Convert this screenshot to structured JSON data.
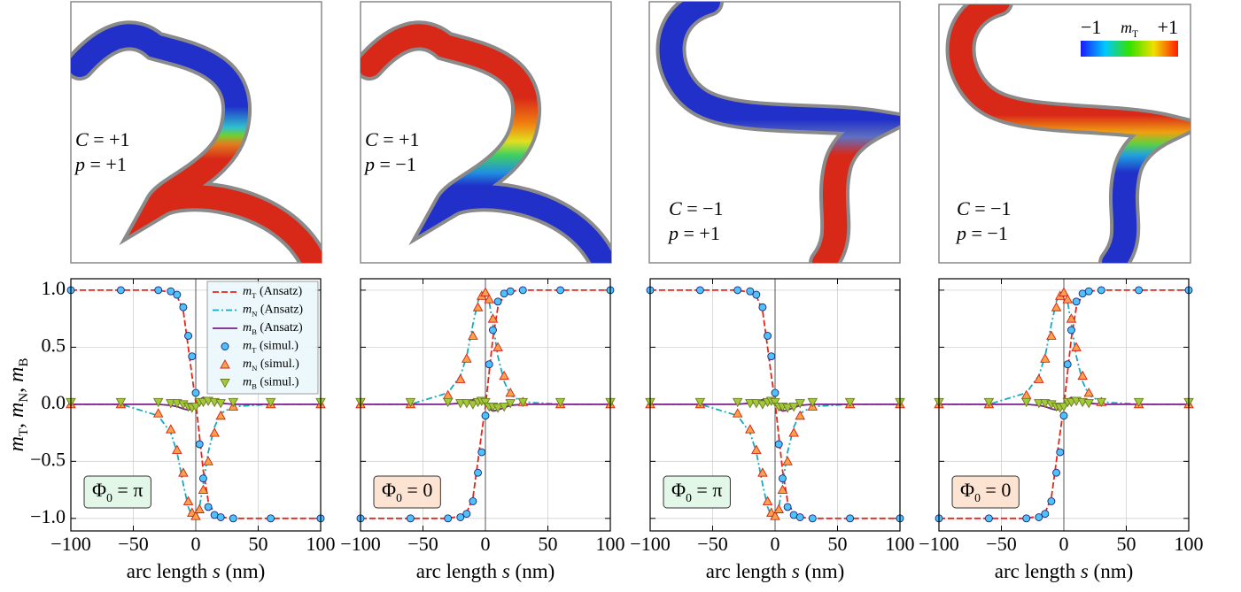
{
  "images": [
    {
      "annotations": [
        "C = +1",
        "p = +1"
      ]
    },
    {
      "annotations": [
        "C = +1",
        "p = −1"
      ]
    },
    {
      "annotations": [
        "C = −1",
        "p = +1"
      ]
    },
    {
      "annotations": [
        "C = −1",
        "p = −1"
      ],
      "colorbar": {
        "label": "mT",
        "ticks": [
          {
            "value": -1,
            "label": "−1"
          },
          {
            "value": 1,
            "label": "+1"
          }
        ],
        "colors": [
          "#1a1aff",
          "#00c8ff",
          "#33e000",
          "#f0e000",
          "#ff1a00"
        ]
      }
    }
  ],
  "chart_data": [
    {
      "type": "line",
      "ylabel": "mT, mN, mB",
      "xlabel": "arc length s (nm)",
      "xlim": [
        -100,
        100
      ],
      "ylim": [
        -1.11,
        1.1
      ],
      "xticks": [
        {
          "value": -100,
          "label": "−100"
        },
        {
          "value": -50,
          "label": "−50"
        },
        0,
        50,
        100
      ],
      "yticks": [
        {
          "value": -1,
          "label": "−1.0"
        },
        {
          "value": -0.5,
          "label": "−0.5"
        },
        {
          "value": 0,
          "label": "0.0"
        },
        {
          "value": 0.5,
          "label": "0.5"
        },
        {
          "value": 1,
          "label": "1.0"
        }
      ],
      "grid": true,
      "vline": 0,
      "legend": "upper right",
      "annotation": {
        "text": "Φ0 = π",
        "facecolor": "#e2f7e8"
      },
      "x": [
        -100,
        -60,
        -30,
        -20,
        -15,
        -10,
        -6,
        -3,
        0,
        3,
        6,
        10,
        15,
        20,
        30,
        60,
        100
      ],
      "series": [
        {
          "name": "mT (Ansatz)",
          "kind": "line",
          "style": "dashed",
          "color": "#e3261c",
          "values": [
            1,
            1,
            1,
            0.98,
            0.95,
            0.82,
            0.5,
            0.25,
            0.02,
            -0.28,
            -0.58,
            -0.85,
            -0.96,
            -0.99,
            -1,
            -1,
            -1
          ]
        },
        {
          "name": "mN (Ansatz)",
          "kind": "line",
          "style": "dashdot",
          "color": "#17a9bd",
          "values": [
            0,
            0,
            -0.1,
            -0.25,
            -0.42,
            -0.7,
            -0.9,
            -0.98,
            -0.99,
            -0.9,
            -0.7,
            -0.42,
            -0.2,
            -0.08,
            -0.02,
            0,
            0
          ]
        },
        {
          "name": "mB (Ansatz)",
          "kind": "line",
          "style": "solid",
          "color": "#7a1f8a",
          "values": [
            0,
            0,
            0,
            -0.01,
            -0.02,
            -0.04,
            -0.05,
            -0.04,
            0,
            0.04,
            0.06,
            0.05,
            0.03,
            0.01,
            0,
            0,
            0
          ]
        },
        {
          "name": "mT (simul.)",
          "kind": "scatter",
          "marker": "circle",
          "color": "#4fc3f7",
          "edgecolor": "#1a237e",
          "values": [
            1,
            1,
            1,
            0.99,
            0.96,
            0.85,
            0.6,
            0.42,
            0.1,
            -0.35,
            -0.65,
            -0.9,
            -0.97,
            -0.99,
            -1,
            -1,
            -1
          ]
        },
        {
          "name": "mN (simul.)",
          "kind": "scatter",
          "marker": "triangle-up",
          "color": "#f8a24e",
          "edgecolor": "#d62010",
          "values": [
            0,
            0,
            -0.08,
            -0.22,
            -0.4,
            -0.6,
            -0.85,
            -0.95,
            -0.98,
            -0.92,
            -0.75,
            -0.5,
            -0.25,
            -0.1,
            -0.02,
            0,
            0
          ]
        },
        {
          "name": "mB (simul.)",
          "kind": "scatter",
          "marker": "triangle-down",
          "color": "#a3c93a",
          "edgecolor": "#6b7a1e",
          "values": [
            0.02,
            0.02,
            0.02,
            0.01,
            0.01,
            0,
            -0.02,
            -0.03,
            -0.02,
            0.02,
            0.02,
            0.03,
            0.02,
            0.01,
            0.02,
            0.02,
            0.02
          ]
        }
      ]
    },
    {
      "type": "line",
      "xlabel": "arc length s (nm)",
      "xlim": [
        -100,
        100
      ],
      "ylim": [
        -1.11,
        1.1
      ],
      "xticks": [
        {
          "value": -100,
          "label": "−100"
        },
        {
          "value": -50,
          "label": "−50"
        },
        0,
        50,
        100
      ],
      "yticks": [
        -1,
        -0.5,
        0,
        0.5,
        1
      ],
      "show_ytick_labels": false,
      "grid": true,
      "vline": 0,
      "annotation": {
        "text": "Φ0 = 0",
        "facecolor": "#fde3d2"
      },
      "x": [
        -100,
        -60,
        -30,
        -20,
        -15,
        -10,
        -6,
        -3,
        0,
        3,
        6,
        10,
        15,
        20,
        30,
        60,
        100
      ],
      "series": [
        {
          "kind": "line",
          "style": "dashed",
          "color": "#e3261c",
          "values": [
            -1,
            -1,
            -1,
            -0.98,
            -0.95,
            -0.82,
            -0.5,
            -0.25,
            -0.02,
            0.28,
            0.58,
            0.85,
            0.96,
            0.99,
            1,
            1,
            1
          ]
        },
        {
          "kind": "line",
          "style": "dashdot",
          "color": "#17a9bd",
          "values": [
            0,
            0,
            0.1,
            0.25,
            0.42,
            0.7,
            0.9,
            0.98,
            0.99,
            0.9,
            0.7,
            0.42,
            0.2,
            0.08,
            0.02,
            0,
            0
          ]
        },
        {
          "kind": "line",
          "style": "solid",
          "color": "#7a1f8a",
          "values": [
            0,
            0,
            0,
            0.01,
            0.02,
            0.04,
            0.05,
            0.04,
            0,
            -0.04,
            -0.06,
            -0.05,
            -0.03,
            -0.01,
            0,
            0,
            0
          ]
        },
        {
          "kind": "scatter",
          "marker": "circle",
          "color": "#4fc3f7",
          "edgecolor": "#1a237e",
          "values": [
            -1,
            -1,
            -1,
            -0.99,
            -0.96,
            -0.85,
            -0.6,
            -0.42,
            -0.1,
            0.35,
            0.65,
            0.9,
            0.97,
            0.99,
            1,
            1,
            1
          ]
        },
        {
          "kind": "scatter",
          "marker": "triangle-up",
          "color": "#f8a24e",
          "edgecolor": "#d62010",
          "values": [
            0,
            0,
            0.08,
            0.22,
            0.4,
            0.6,
            0.85,
            0.95,
            0.98,
            0.92,
            0.75,
            0.5,
            0.25,
            0.1,
            0.02,
            0,
            0
          ]
        },
        {
          "kind": "scatter",
          "marker": "triangle-down",
          "color": "#a3c93a",
          "edgecolor": "#6b7a1e",
          "values": [
            0.02,
            0.02,
            0.02,
            0.01,
            0.01,
            0,
            0.02,
            0.03,
            0.02,
            -0.02,
            -0.02,
            -0.03,
            -0.02,
            0.01,
            0.02,
            0.02,
            0.02
          ]
        }
      ]
    },
    {
      "type": "line",
      "xlabel": "arc length s (nm)",
      "xlim": [
        -100,
        100
      ],
      "ylim": [
        -1.11,
        1.1
      ],
      "xticks": [
        {
          "value": -100,
          "label": "−100"
        },
        {
          "value": -50,
          "label": "−50"
        },
        0,
        50,
        100
      ],
      "yticks": [
        -1,
        -0.5,
        0,
        0.5,
        1
      ],
      "show_ytick_labels": false,
      "grid": true,
      "vline": 0,
      "annotation": {
        "text": "Φ0 = π",
        "facecolor": "#e2f7e8"
      },
      "x": [
        -100,
        -60,
        -30,
        -20,
        -15,
        -10,
        -6,
        -3,
        0,
        3,
        6,
        10,
        15,
        20,
        30,
        60,
        100
      ],
      "series": [
        {
          "kind": "line",
          "style": "dashed",
          "color": "#e3261c",
          "values": [
            1,
            1,
            1,
            0.98,
            0.95,
            0.82,
            0.5,
            0.25,
            0.02,
            -0.28,
            -0.58,
            -0.85,
            -0.96,
            -0.99,
            -1,
            -1,
            -1
          ]
        },
        {
          "kind": "line",
          "style": "dashdot",
          "color": "#17a9bd",
          "values": [
            0,
            0,
            -0.1,
            -0.25,
            -0.42,
            -0.7,
            -0.9,
            -0.98,
            -0.99,
            -0.9,
            -0.7,
            -0.42,
            -0.2,
            -0.08,
            -0.02,
            0,
            0
          ]
        },
        {
          "kind": "line",
          "style": "solid",
          "color": "#7a1f8a",
          "values": [
            0,
            0,
            0,
            0.01,
            0.02,
            0.04,
            0.05,
            0.04,
            0,
            -0.04,
            -0.06,
            -0.05,
            -0.03,
            -0.01,
            0,
            0,
            0
          ]
        },
        {
          "kind": "scatter",
          "marker": "circle",
          "color": "#4fc3f7",
          "edgecolor": "#1a237e",
          "values": [
            1,
            1,
            1,
            0.99,
            0.96,
            0.85,
            0.6,
            0.42,
            0.1,
            -0.35,
            -0.65,
            -0.9,
            -0.97,
            -0.99,
            -1,
            -1,
            -1
          ]
        },
        {
          "kind": "scatter",
          "marker": "triangle-up",
          "color": "#f8a24e",
          "edgecolor": "#d62010",
          "values": [
            0,
            0,
            -0.08,
            -0.22,
            -0.4,
            -0.6,
            -0.85,
            -0.95,
            -0.98,
            -0.92,
            -0.75,
            -0.5,
            -0.25,
            -0.1,
            -0.02,
            0,
            0
          ]
        },
        {
          "kind": "scatter",
          "marker": "triangle-down",
          "color": "#a3c93a",
          "edgecolor": "#6b7a1e",
          "values": [
            0.02,
            0.02,
            0.02,
            0.01,
            0.01,
            0,
            0.02,
            0.03,
            0.02,
            -0.02,
            -0.02,
            -0.03,
            -0.02,
            0.01,
            0.02,
            0.02,
            0.02
          ]
        }
      ]
    },
    {
      "type": "line",
      "xlabel": "arc length s (nm)",
      "xlim": [
        -100,
        100
      ],
      "ylim": [
        -1.11,
        1.1
      ],
      "xticks": [
        {
          "value": -100,
          "label": "−100"
        },
        {
          "value": -50,
          "label": "−50"
        },
        0,
        50,
        100
      ],
      "yticks": [
        -1,
        -0.5,
        0,
        0.5,
        1
      ],
      "show_ytick_labels": false,
      "grid": true,
      "vline": 0,
      "annotation": {
        "text": "Φ0 = 0",
        "facecolor": "#fde3d2"
      },
      "x": [
        -100,
        -60,
        -30,
        -20,
        -15,
        -10,
        -6,
        -3,
        0,
        3,
        6,
        10,
        15,
        20,
        30,
        60,
        100
      ],
      "series": [
        {
          "kind": "line",
          "style": "dashed",
          "color": "#e3261c",
          "values": [
            -1,
            -1,
            -1,
            -0.98,
            -0.95,
            -0.82,
            -0.5,
            -0.25,
            -0.02,
            0.28,
            0.58,
            0.85,
            0.96,
            0.99,
            1,
            1,
            1
          ]
        },
        {
          "kind": "line",
          "style": "dashdot",
          "color": "#17a9bd",
          "values": [
            0,
            0,
            0.1,
            0.25,
            0.42,
            0.7,
            0.9,
            0.98,
            0.99,
            0.9,
            0.7,
            0.42,
            0.2,
            0.08,
            0.02,
            0,
            0
          ]
        },
        {
          "kind": "line",
          "style": "solid",
          "color": "#7a1f8a",
          "values": [
            0,
            0,
            0,
            -0.01,
            -0.02,
            -0.04,
            -0.05,
            -0.04,
            0,
            0.04,
            0.06,
            0.05,
            0.03,
            0.01,
            0,
            0,
            0
          ]
        },
        {
          "kind": "scatter",
          "marker": "circle",
          "color": "#4fc3f7",
          "edgecolor": "#1a237e",
          "values": [
            -1,
            -1,
            -1,
            -0.99,
            -0.96,
            -0.85,
            -0.6,
            -0.42,
            -0.1,
            0.35,
            0.65,
            0.9,
            0.97,
            0.99,
            1,
            1,
            1
          ]
        },
        {
          "kind": "scatter",
          "marker": "triangle-up",
          "color": "#f8a24e",
          "edgecolor": "#d62010",
          "values": [
            0,
            0,
            0.08,
            0.22,
            0.4,
            0.6,
            0.85,
            0.95,
            0.98,
            0.92,
            0.75,
            0.5,
            0.25,
            0.1,
            0.02,
            0,
            0
          ]
        },
        {
          "kind": "scatter",
          "marker": "triangle-down",
          "color": "#a3c93a",
          "edgecolor": "#6b7a1e",
          "values": [
            0.02,
            0.02,
            0.02,
            0.01,
            0.01,
            0,
            -0.02,
            -0.03,
            -0.02,
            0.02,
            0.02,
            0.03,
            0.02,
            0.01,
            0.02,
            0.02,
            0.02
          ]
        }
      ]
    }
  ]
}
